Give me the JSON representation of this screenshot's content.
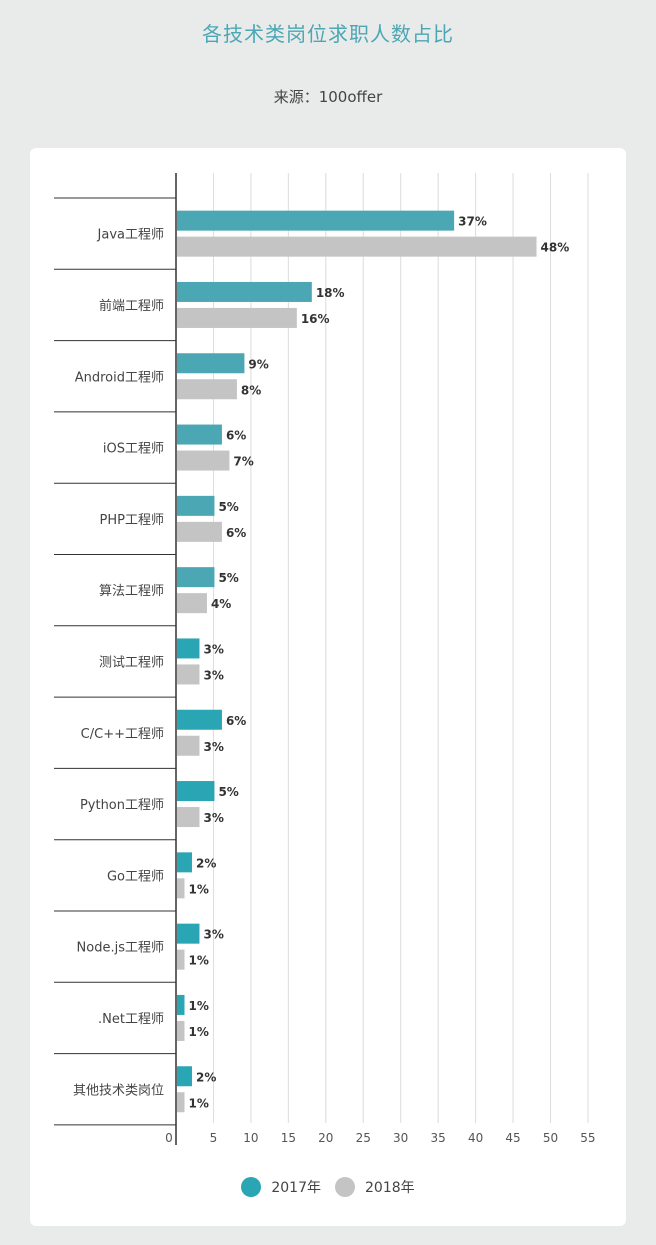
{
  "title": "各技术类岗位求职人数占比",
  "subtitle": "来源：100offer",
  "colors": {
    "s2017_light": "#4ba7b4",
    "s2017": "#2aa5b4",
    "s2018": "#c4c4c4",
    "grid": "#dcdcdc",
    "axis": "#333333"
  },
  "chart_data": {
    "type": "bar",
    "orientation": "horizontal",
    "title": "各技术类岗位求职人数占比",
    "subtitle": "来源：100offer",
    "categories": [
      "Java工程师",
      "前端工程师",
      "Android工程师",
      "iOS工程师",
      "PHP工程师",
      "算法工程师",
      "测试工程师",
      "C/C++工程师",
      "Python工程师",
      "Go工程师",
      "Node.js工程师",
      ".Net工程师",
      "其他技术类岗位"
    ],
    "series": [
      {
        "name": "2017年",
        "values": [
          37,
          18,
          9,
          6,
          5,
          5,
          3,
          6,
          5,
          2,
          3,
          1,
          2
        ],
        "labels": [
          "37%",
          "18%",
          "9%",
          "6%",
          "5%",
          "5%",
          "3%",
          "6%",
          "5%",
          "2%",
          "3%",
          "1%",
          "2%"
        ]
      },
      {
        "name": "2018年",
        "values": [
          48,
          16,
          8,
          7,
          6,
          4,
          3,
          3,
          3,
          1,
          1,
          1,
          1
        ],
        "labels": [
          "48%",
          "16%",
          "8%",
          "7%",
          "6%",
          "4%",
          "3%",
          "3%",
          "3%",
          "1%",
          "1%",
          "1%",
          "1%"
        ]
      }
    ],
    "xlim": [
      0,
      55
    ],
    "xticks": [
      "0",
      "5",
      "10",
      "15",
      "20",
      "25",
      "30",
      "35",
      "40",
      "45",
      "50",
      "55"
    ],
    "grid": true,
    "legend_position": "bottom-center"
  }
}
